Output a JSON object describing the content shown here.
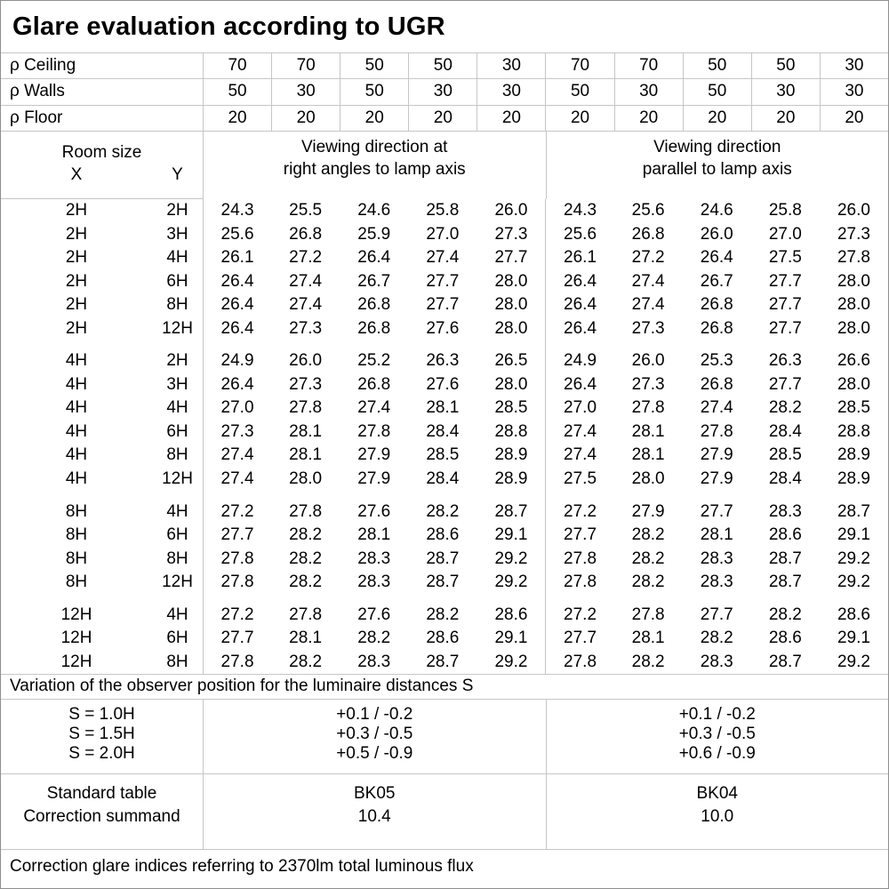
{
  "title": "Glare evaluation according to UGR",
  "colors": {
    "background": "#ffffff",
    "text": "#000000",
    "grid_line": "#c6c6c6",
    "outer_border": "#8f8f8f"
  },
  "reflectance": {
    "rows": [
      {
        "label": "ρ Ceiling",
        "values": [
          "70",
          "70",
          "50",
          "50",
          "30",
          "70",
          "70",
          "50",
          "50",
          "30"
        ]
      },
      {
        "label": "ρ Walls",
        "values": [
          "50",
          "30",
          "50",
          "30",
          "30",
          "50",
          "30",
          "50",
          "30",
          "30"
        ]
      },
      {
        "label": "ρ Floor",
        "values": [
          "20",
          "20",
          "20",
          "20",
          "20",
          "20",
          "20",
          "20",
          "20",
          "20"
        ]
      }
    ]
  },
  "table_header": {
    "room_size": "Room size",
    "x": "X",
    "y": "Y",
    "left_group_line1": "Viewing direction at",
    "left_group_line2": "right angles to lamp axis",
    "right_group_line1": "Viewing direction",
    "right_group_line2": "parallel to lamp axis"
  },
  "ugr_groups": [
    {
      "rows": [
        {
          "x": "2H",
          "y": "2H",
          "left": [
            "24.3",
            "25.5",
            "24.6",
            "25.8",
            "26.0"
          ],
          "right": [
            "24.3",
            "25.6",
            "24.6",
            "25.8",
            "26.0"
          ]
        },
        {
          "x": "2H",
          "y": "3H",
          "left": [
            "25.6",
            "26.8",
            "25.9",
            "27.0",
            "27.3"
          ],
          "right": [
            "25.6",
            "26.8",
            "26.0",
            "27.0",
            "27.3"
          ]
        },
        {
          "x": "2H",
          "y": "4H",
          "left": [
            "26.1",
            "27.2",
            "26.4",
            "27.4",
            "27.7"
          ],
          "right": [
            "26.1",
            "27.2",
            "26.4",
            "27.5",
            "27.8"
          ]
        },
        {
          "x": "2H",
          "y": "6H",
          "left": [
            "26.4",
            "27.4",
            "26.7",
            "27.7",
            "28.0"
          ],
          "right": [
            "26.4",
            "27.4",
            "26.7",
            "27.7",
            "28.0"
          ]
        },
        {
          "x": "2H",
          "y": "8H",
          "left": [
            "26.4",
            "27.4",
            "26.8",
            "27.7",
            "28.0"
          ],
          "right": [
            "26.4",
            "27.4",
            "26.8",
            "27.7",
            "28.0"
          ]
        },
        {
          "x": "2H",
          "y": "12H",
          "left": [
            "26.4",
            "27.3",
            "26.8",
            "27.6",
            "28.0"
          ],
          "right": [
            "26.4",
            "27.3",
            "26.8",
            "27.7",
            "28.0"
          ]
        }
      ]
    },
    {
      "rows": [
        {
          "x": "4H",
          "y": "2H",
          "left": [
            "24.9",
            "26.0",
            "25.2",
            "26.3",
            "26.5"
          ],
          "right": [
            "24.9",
            "26.0",
            "25.3",
            "26.3",
            "26.6"
          ]
        },
        {
          "x": "4H",
          "y": "3H",
          "left": [
            "26.4",
            "27.3",
            "26.8",
            "27.6",
            "28.0"
          ],
          "right": [
            "26.4",
            "27.3",
            "26.8",
            "27.7",
            "28.0"
          ]
        },
        {
          "x": "4H",
          "y": "4H",
          "left": [
            "27.0",
            "27.8",
            "27.4",
            "28.1",
            "28.5"
          ],
          "right": [
            "27.0",
            "27.8",
            "27.4",
            "28.2",
            "28.5"
          ]
        },
        {
          "x": "4H",
          "y": "6H",
          "left": [
            "27.3",
            "28.1",
            "27.8",
            "28.4",
            "28.8"
          ],
          "right": [
            "27.4",
            "28.1",
            "27.8",
            "28.4",
            "28.8"
          ]
        },
        {
          "x": "4H",
          "y": "8H",
          "left": [
            "27.4",
            "28.1",
            "27.9",
            "28.5",
            "28.9"
          ],
          "right": [
            "27.4",
            "28.1",
            "27.9",
            "28.5",
            "28.9"
          ]
        },
        {
          "x": "4H",
          "y": "12H",
          "left": [
            "27.4",
            "28.0",
            "27.9",
            "28.4",
            "28.9"
          ],
          "right": [
            "27.5",
            "28.0",
            "27.9",
            "28.4",
            "28.9"
          ]
        }
      ]
    },
    {
      "rows": [
        {
          "x": "8H",
          "y": "4H",
          "left": [
            "27.2",
            "27.8",
            "27.6",
            "28.2",
            "28.7"
          ],
          "right": [
            "27.2",
            "27.9",
            "27.7",
            "28.3",
            "28.7"
          ]
        },
        {
          "x": "8H",
          "y": "6H",
          "left": [
            "27.7",
            "28.2",
            "28.1",
            "28.6",
            "29.1"
          ],
          "right": [
            "27.7",
            "28.2",
            "28.1",
            "28.6",
            "29.1"
          ]
        },
        {
          "x": "8H",
          "y": "8H",
          "left": [
            "27.8",
            "28.2",
            "28.3",
            "28.7",
            "29.2"
          ],
          "right": [
            "27.8",
            "28.2",
            "28.3",
            "28.7",
            "29.2"
          ]
        },
        {
          "x": "8H",
          "y": "12H",
          "left": [
            "27.8",
            "28.2",
            "28.3",
            "28.7",
            "29.2"
          ],
          "right": [
            "27.8",
            "28.2",
            "28.3",
            "28.7",
            "29.2"
          ]
        }
      ]
    },
    {
      "rows": [
        {
          "x": "12H",
          "y": "4H",
          "left": [
            "27.2",
            "27.8",
            "27.6",
            "28.2",
            "28.6"
          ],
          "right": [
            "27.2",
            "27.8",
            "27.7",
            "28.2",
            "28.6"
          ]
        },
        {
          "x": "12H",
          "y": "6H",
          "left": [
            "27.7",
            "28.1",
            "28.2",
            "28.6",
            "29.1"
          ],
          "right": [
            "27.7",
            "28.1",
            "28.2",
            "28.6",
            "29.1"
          ]
        },
        {
          "x": "12H",
          "y": "8H",
          "left": [
            "27.8",
            "28.2",
            "28.3",
            "28.7",
            "29.2"
          ],
          "right": [
            "27.8",
            "28.2",
            "28.3",
            "28.7",
            "29.2"
          ]
        }
      ]
    }
  ],
  "variation_note": "Variation of the observer position for the luminaire distances S",
  "s_variation": {
    "rows": [
      {
        "label": "S = 1.0H",
        "left": "+0.1 / -0.2",
        "right": "+0.1 / -0.2"
      },
      {
        "label": "S = 1.5H",
        "left": "+0.3 / -0.5",
        "right": "+0.3 / -0.5"
      },
      {
        "label": "S = 2.0H",
        "left": "+0.5 / -0.9",
        "right": "+0.6 / -0.9"
      }
    ]
  },
  "standard": {
    "rows": [
      {
        "label": "Standard table",
        "left": "BK05",
        "right": "BK04"
      },
      {
        "label": "Correction summand",
        "left": "10.4",
        "right": "10.0"
      }
    ]
  },
  "footer_note": "Correction glare indices referring to 2370lm total luminous flux"
}
